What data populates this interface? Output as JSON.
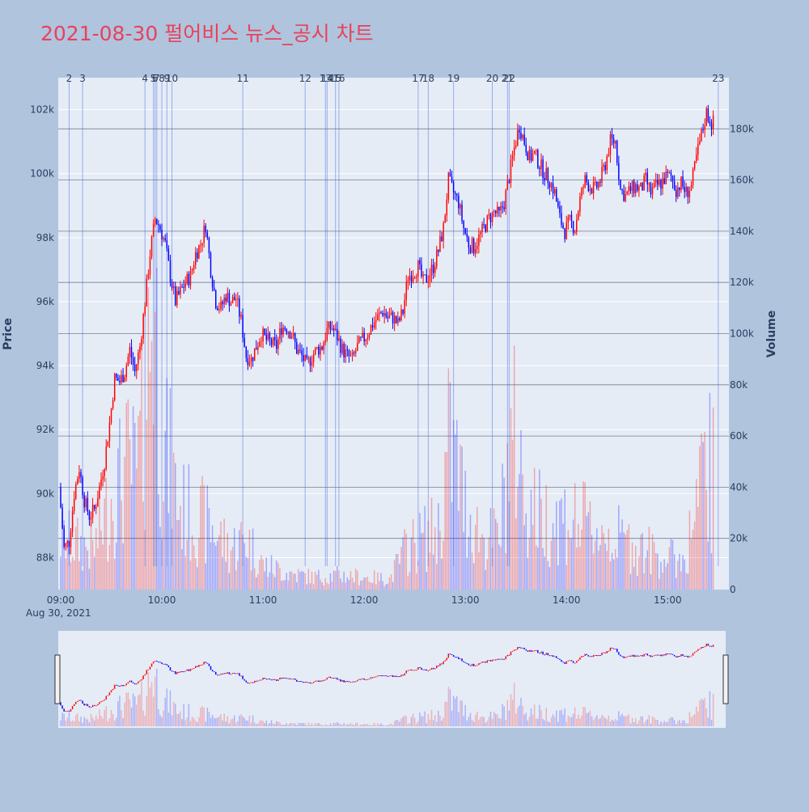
{
  "chart_data": {
    "type": "candlestick",
    "title": "2021-08-30 펄어비스 뉴스_공시 차트",
    "title_color": "#e8425a",
    "y_label": "Price",
    "y2_label": "Volume",
    "colors": {
      "up": "#ff0000",
      "down": "#0000ff",
      "background": "#b0c4de",
      "plot_bg": "#e5ecf6"
    },
    "x_ticks": [
      "09:00",
      "10:00",
      "11:00",
      "12:00",
      "13:00",
      "14:00",
      "15:00"
    ],
    "x_date_label": "Aug 30, 2021",
    "price_ticks": [
      "88k",
      "90k",
      "92k",
      "94k",
      "96k",
      "98k",
      "100k",
      "102k"
    ],
    "price_range": [
      87000,
      103000
    ],
    "volume_ticks": [
      "0",
      "20k",
      "40k",
      "60k",
      "80k",
      "100k",
      "120k",
      "140k",
      "160k",
      "180k"
    ],
    "volume_range": [
      0,
      200000
    ],
    "news_markers": [
      {
        "label": "2",
        "time": "09:05"
      },
      {
        "label": "3",
        "time": "09:13"
      },
      {
        "label": "4",
        "time": "09:50"
      },
      {
        "label": "5",
        "time": "09:55"
      },
      {
        "label": "6",
        "time": "09:56"
      },
      {
        "label": "7",
        "time": "09:57"
      },
      {
        "label": "8",
        "time": "10:00"
      },
      {
        "label": "9",
        "time": "10:03"
      },
      {
        "label": "10",
        "time": "10:06"
      },
      {
        "label": "11",
        "time": "10:48"
      },
      {
        "label": "12",
        "time": "11:25"
      },
      {
        "label": "13",
        "time": "11:37"
      },
      {
        "label": "14",
        "time": "11:38"
      },
      {
        "label": "15",
        "time": "11:43"
      },
      {
        "label": "16",
        "time": "11:45"
      },
      {
        "label": "17",
        "time": "12:32"
      },
      {
        "label": "18",
        "time": "12:38"
      },
      {
        "label": "19",
        "time": "12:53"
      },
      {
        "label": "20",
        "time": "13:16"
      },
      {
        "label": "21",
        "time": "13:25"
      },
      {
        "label": "22",
        "time": "13:26"
      },
      {
        "label": "23",
        "time": "15:30"
      }
    ],
    "price_path": [
      [
        "09:00",
        90200
      ],
      [
        "09:03",
        88300
      ],
      [
        "09:06",
        88500
      ],
      [
        "09:09",
        90000
      ],
      [
        "09:12",
        90800
      ],
      [
        "09:15",
        89800
      ],
      [
        "09:18",
        89300
      ],
      [
        "09:21",
        89500
      ],
      [
        "09:24",
        90200
      ],
      [
        "09:27",
        91000
      ],
      [
        "09:30",
        92200
      ],
      [
        "09:33",
        93600
      ],
      [
        "09:36",
        93500
      ],
      [
        "09:39",
        93800
      ],
      [
        "09:42",
        94500
      ],
      [
        "09:45",
        93800
      ],
      [
        "09:48",
        94600
      ],
      [
        "09:51",
        96000
      ],
      [
        "09:54",
        97500
      ],
      [
        "09:57",
        98600
      ],
      [
        "10:00",
        98300
      ],
      [
        "10:03",
        97800
      ],
      [
        "10:06",
        96800
      ],
      [
        "10:09",
        96000
      ],
      [
        "10:12",
        96300
      ],
      [
        "10:15",
        96600
      ],
      [
        "10:18",
        96800
      ],
      [
        "10:21",
        97500
      ],
      [
        "10:24",
        97800
      ],
      [
        "10:27",
        98400
      ],
      [
        "10:30",
        97000
      ],
      [
        "10:33",
        96000
      ],
      [
        "10:36",
        95800
      ],
      [
        "10:39",
        96200
      ],
      [
        "10:42",
        96000
      ],
      [
        "10:45",
        96100
      ],
      [
        "10:48",
        95400
      ],
      [
        "10:51",
        94300
      ],
      [
        "10:54",
        94200
      ],
      [
        "10:57",
        94600
      ],
      [
        "11:00",
        95000
      ],
      [
        "11:03",
        94800
      ],
      [
        "11:06",
        94700
      ],
      [
        "11:09",
        94600
      ],
      [
        "11:12",
        95200
      ],
      [
        "11:15",
        95200
      ],
      [
        "11:18",
        95000
      ],
      [
        "11:21",
        94500
      ],
      [
        "11:24",
        94300
      ],
      [
        "11:27",
        94000
      ],
      [
        "11:30",
        94300
      ],
      [
        "11:33",
        94500
      ],
      [
        "11:36",
        94600
      ],
      [
        "11:39",
        95100
      ],
      [
        "11:42",
        95200
      ],
      [
        "11:45",
        94900
      ],
      [
        "11:48",
        94500
      ],
      [
        "11:51",
        94300
      ],
      [
        "11:54",
        94200
      ],
      [
        "11:57",
        94600
      ],
      [
        "12:00",
        94800
      ],
      [
        "12:03",
        95000
      ],
      [
        "12:06",
        95300
      ],
      [
        "12:09",
        95500
      ],
      [
        "12:12",
        95700
      ],
      [
        "12:15",
        95500
      ],
      [
        "12:18",
        95500
      ],
      [
        "12:21",
        95300
      ],
      [
        "12:24",
        95700
      ],
      [
        "12:27",
        96800
      ],
      [
        "12:30",
        96900
      ],
      [
        "12:33",
        97100
      ],
      [
        "12:36",
        96600
      ],
      [
        "12:39",
        96800
      ],
      [
        "12:42",
        97100
      ],
      [
        "12:45",
        97600
      ],
      [
        "12:48",
        98300
      ],
      [
        "12:51",
        99800
      ],
      [
        "12:54",
        99400
      ],
      [
        "12:57",
        99100
      ],
      [
        "13:00",
        98300
      ],
      [
        "13:03",
        97800
      ],
      [
        "13:06",
        97700
      ],
      [
        "13:09",
        98000
      ],
      [
        "13:12",
        98300
      ],
      [
        "13:15",
        98600
      ],
      [
        "13:18",
        98800
      ],
      [
        "13:21",
        98700
      ],
      [
        "13:24",
        99100
      ],
      [
        "13:27",
        99900
      ],
      [
        "13:30",
        100800
      ],
      [
        "13:33",
        101500
      ],
      [
        "13:36",
        101000
      ],
      [
        "13:39",
        100500
      ],
      [
        "13:42",
        100600
      ],
      [
        "13:45",
        100300
      ],
      [
        "13:48",
        100000
      ],
      [
        "13:51",
        99800
      ],
      [
        "13:54",
        99400
      ],
      [
        "13:57",
        98600
      ],
      [
        "14:00",
        98200
      ],
      [
        "14:03",
        98500
      ],
      [
        "14:06",
        98300
      ],
      [
        "14:09",
        99200
      ],
      [
        "14:12",
        99800
      ],
      [
        "14:15",
        99600
      ],
      [
        "14:18",
        99500
      ],
      [
        "14:21",
        99800
      ],
      [
        "14:24",
        100300
      ],
      [
        "14:27",
        101000
      ],
      [
        "14:30",
        101000
      ],
      [
        "14:33",
        99500
      ],
      [
        "14:36",
        99300
      ],
      [
        "14:39",
        99500
      ],
      [
        "14:42",
        99600
      ],
      [
        "14:45",
        99500
      ],
      [
        "14:48",
        99800
      ],
      [
        "14:51",
        99400
      ],
      [
        "14:54",
        99600
      ],
      [
        "14:57",
        99700
      ],
      [
        "15:00",
        99900
      ],
      [
        "15:03",
        99900
      ],
      [
        "15:06",
        99500
      ],
      [
        "15:09",
        99700
      ],
      [
        "15:12",
        99400
      ],
      [
        "15:15",
        99600
      ],
      [
        "15:18",
        100500
      ],
      [
        "15:21",
        101200
      ],
      [
        "15:24",
        101900
      ],
      [
        "15:27",
        101600
      ]
    ],
    "volume_profile": [
      [
        "09:00",
        25000
      ],
      [
        "09:10",
        22000
      ],
      [
        "09:20",
        20000
      ],
      [
        "09:30",
        45000
      ],
      [
        "09:40",
        60000
      ],
      [
        "09:45",
        55000
      ],
      [
        "09:50",
        85000
      ],
      [
        "09:55",
        150000
      ],
      [
        "10:00",
        70000
      ],
      [
        "10:05",
        60000
      ],
      [
        "10:10",
        40000
      ],
      [
        "10:20",
        35000
      ],
      [
        "10:30",
        30000
      ],
      [
        "10:40",
        20000
      ],
      [
        "10:50",
        25000
      ],
      [
        "11:00",
        12000
      ],
      [
        "11:15",
        8000
      ],
      [
        "11:30",
        6000
      ],
      [
        "11:45",
        7000
      ],
      [
        "12:00",
        6000
      ],
      [
        "12:15",
        5000
      ],
      [
        "12:25",
        20000
      ],
      [
        "12:35",
        25000
      ],
      [
        "12:45",
        30000
      ],
      [
        "12:50",
        70000
      ],
      [
        "12:55",
        60000
      ],
      [
        "13:00",
        40000
      ],
      [
        "13:10",
        25000
      ],
      [
        "13:20",
        25000
      ],
      [
        "13:25",
        60000
      ],
      [
        "13:30",
        75000
      ],
      [
        "13:35",
        45000
      ],
      [
        "13:45",
        35000
      ],
      [
        "14:00",
        35000
      ],
      [
        "14:15",
        30000
      ],
      [
        "14:30",
        25000
      ],
      [
        "14:45",
        20000
      ],
      [
        "15:00",
        15000
      ],
      [
        "15:10",
        15000
      ],
      [
        "15:20",
        50000
      ],
      [
        "15:25",
        60000
      ],
      [
        "15:28",
        50000
      ]
    ]
  }
}
